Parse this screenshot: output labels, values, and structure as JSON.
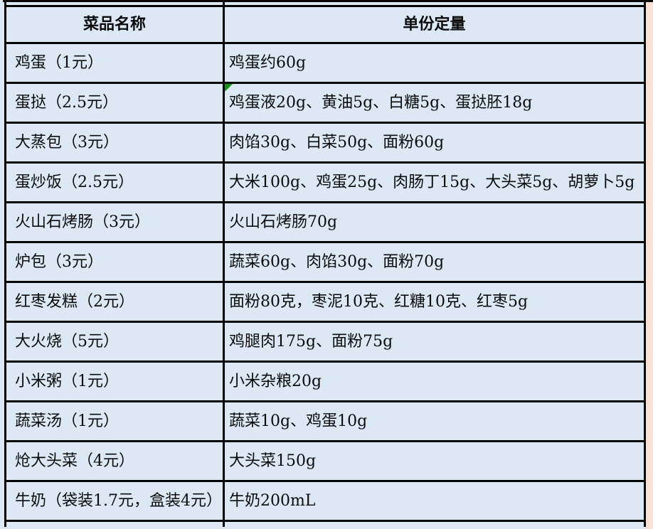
{
  "page": {
    "background_color": "#dce9f4",
    "border_color": "#000000",
    "top_strip_color": "#0a0606",
    "right_strip_color": "#f9e2d5",
    "corner_marker_color": "#1f8c1f"
  },
  "table": {
    "columns": [
      {
        "label": "菜品名称"
      },
      {
        "label": "单份定量"
      }
    ],
    "rows": [
      {
        "name": "鸡蛋（1元）",
        "portion": "鸡蛋约60g"
      },
      {
        "name": "蛋挞（2.5元）",
        "portion": "鸡蛋液20g、黄油5g、白糖5g、蛋挞胚18g",
        "marker": true
      },
      {
        "name": "大蒸包（3元）",
        "portion": "肉馅30g、白菜50g、面粉60g"
      },
      {
        "name": "蛋炒饭（2.5元）",
        "portion": "大米100g、鸡蛋25g、肉肠丁15g、大头菜5g、胡萝卜5g"
      },
      {
        "name": "火山石烤肠（3元）",
        "portion": "火山石烤肠70g"
      },
      {
        "name": "炉包（3元）",
        "portion": "蔬菜60g、肉馅30g、面粉70g"
      },
      {
        "name": "红枣发糕（2元）",
        "portion": "面粉80克，枣泥10克、红糖10克、红枣5g"
      },
      {
        "name": "大火烧（5元）",
        "portion": "鸡腿肉175g、面粉75g"
      },
      {
        "name": "小米粥（1元）",
        "portion": "小米杂粮20g"
      },
      {
        "name": "蔬菜汤（1元）",
        "portion": "蔬菜10g、鸡蛋10g"
      },
      {
        "name": "炝大头菜（4元）",
        "portion": "大头菜150g"
      },
      {
        "name": "牛奶（袋装1.7元，盒装4元）",
        "portion": "牛奶200mL"
      }
    ]
  }
}
